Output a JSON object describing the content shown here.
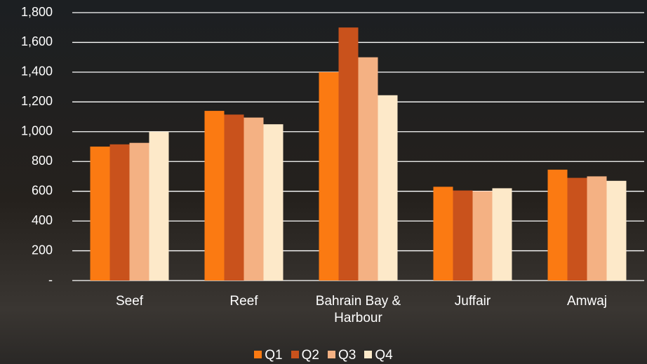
{
  "chart_data": {
    "type": "bar",
    "categories": [
      "Seef",
      "Reef",
      "Bahrain Bay & Harbour",
      "Juffair",
      "Amwaj"
    ],
    "series": [
      {
        "name": "Q1",
        "color": "#fb7a12",
        "values": [
          900,
          1140,
          1400,
          630,
          745
        ]
      },
      {
        "name": "Q2",
        "color": "#c9521c",
        "values": [
          915,
          1115,
          1700,
          605,
          690
        ]
      },
      {
        "name": "Q3",
        "color": "#f4b183",
        "values": [
          925,
          1095,
          1500,
          600,
          700
        ]
      },
      {
        "name": "Q4",
        "color": "#fde9c9",
        "values": [
          1000,
          1050,
          1245,
          620,
          670
        ]
      }
    ],
    "ylim": [
      0,
      1800
    ],
    "yticks": [
      {
        "value": 0,
        "label": "-"
      },
      200,
      400,
      600,
      800,
      {
        "value": 1000,
        "label": "1,000"
      },
      {
        "value": 1200,
        "label": "1,200"
      },
      {
        "value": 1400,
        "label": "1,400"
      },
      {
        "value": 1600,
        "label": "1,600"
      },
      {
        "value": 1800,
        "label": "1,800"
      }
    ],
    "grid": true,
    "legend": "bottom"
  }
}
